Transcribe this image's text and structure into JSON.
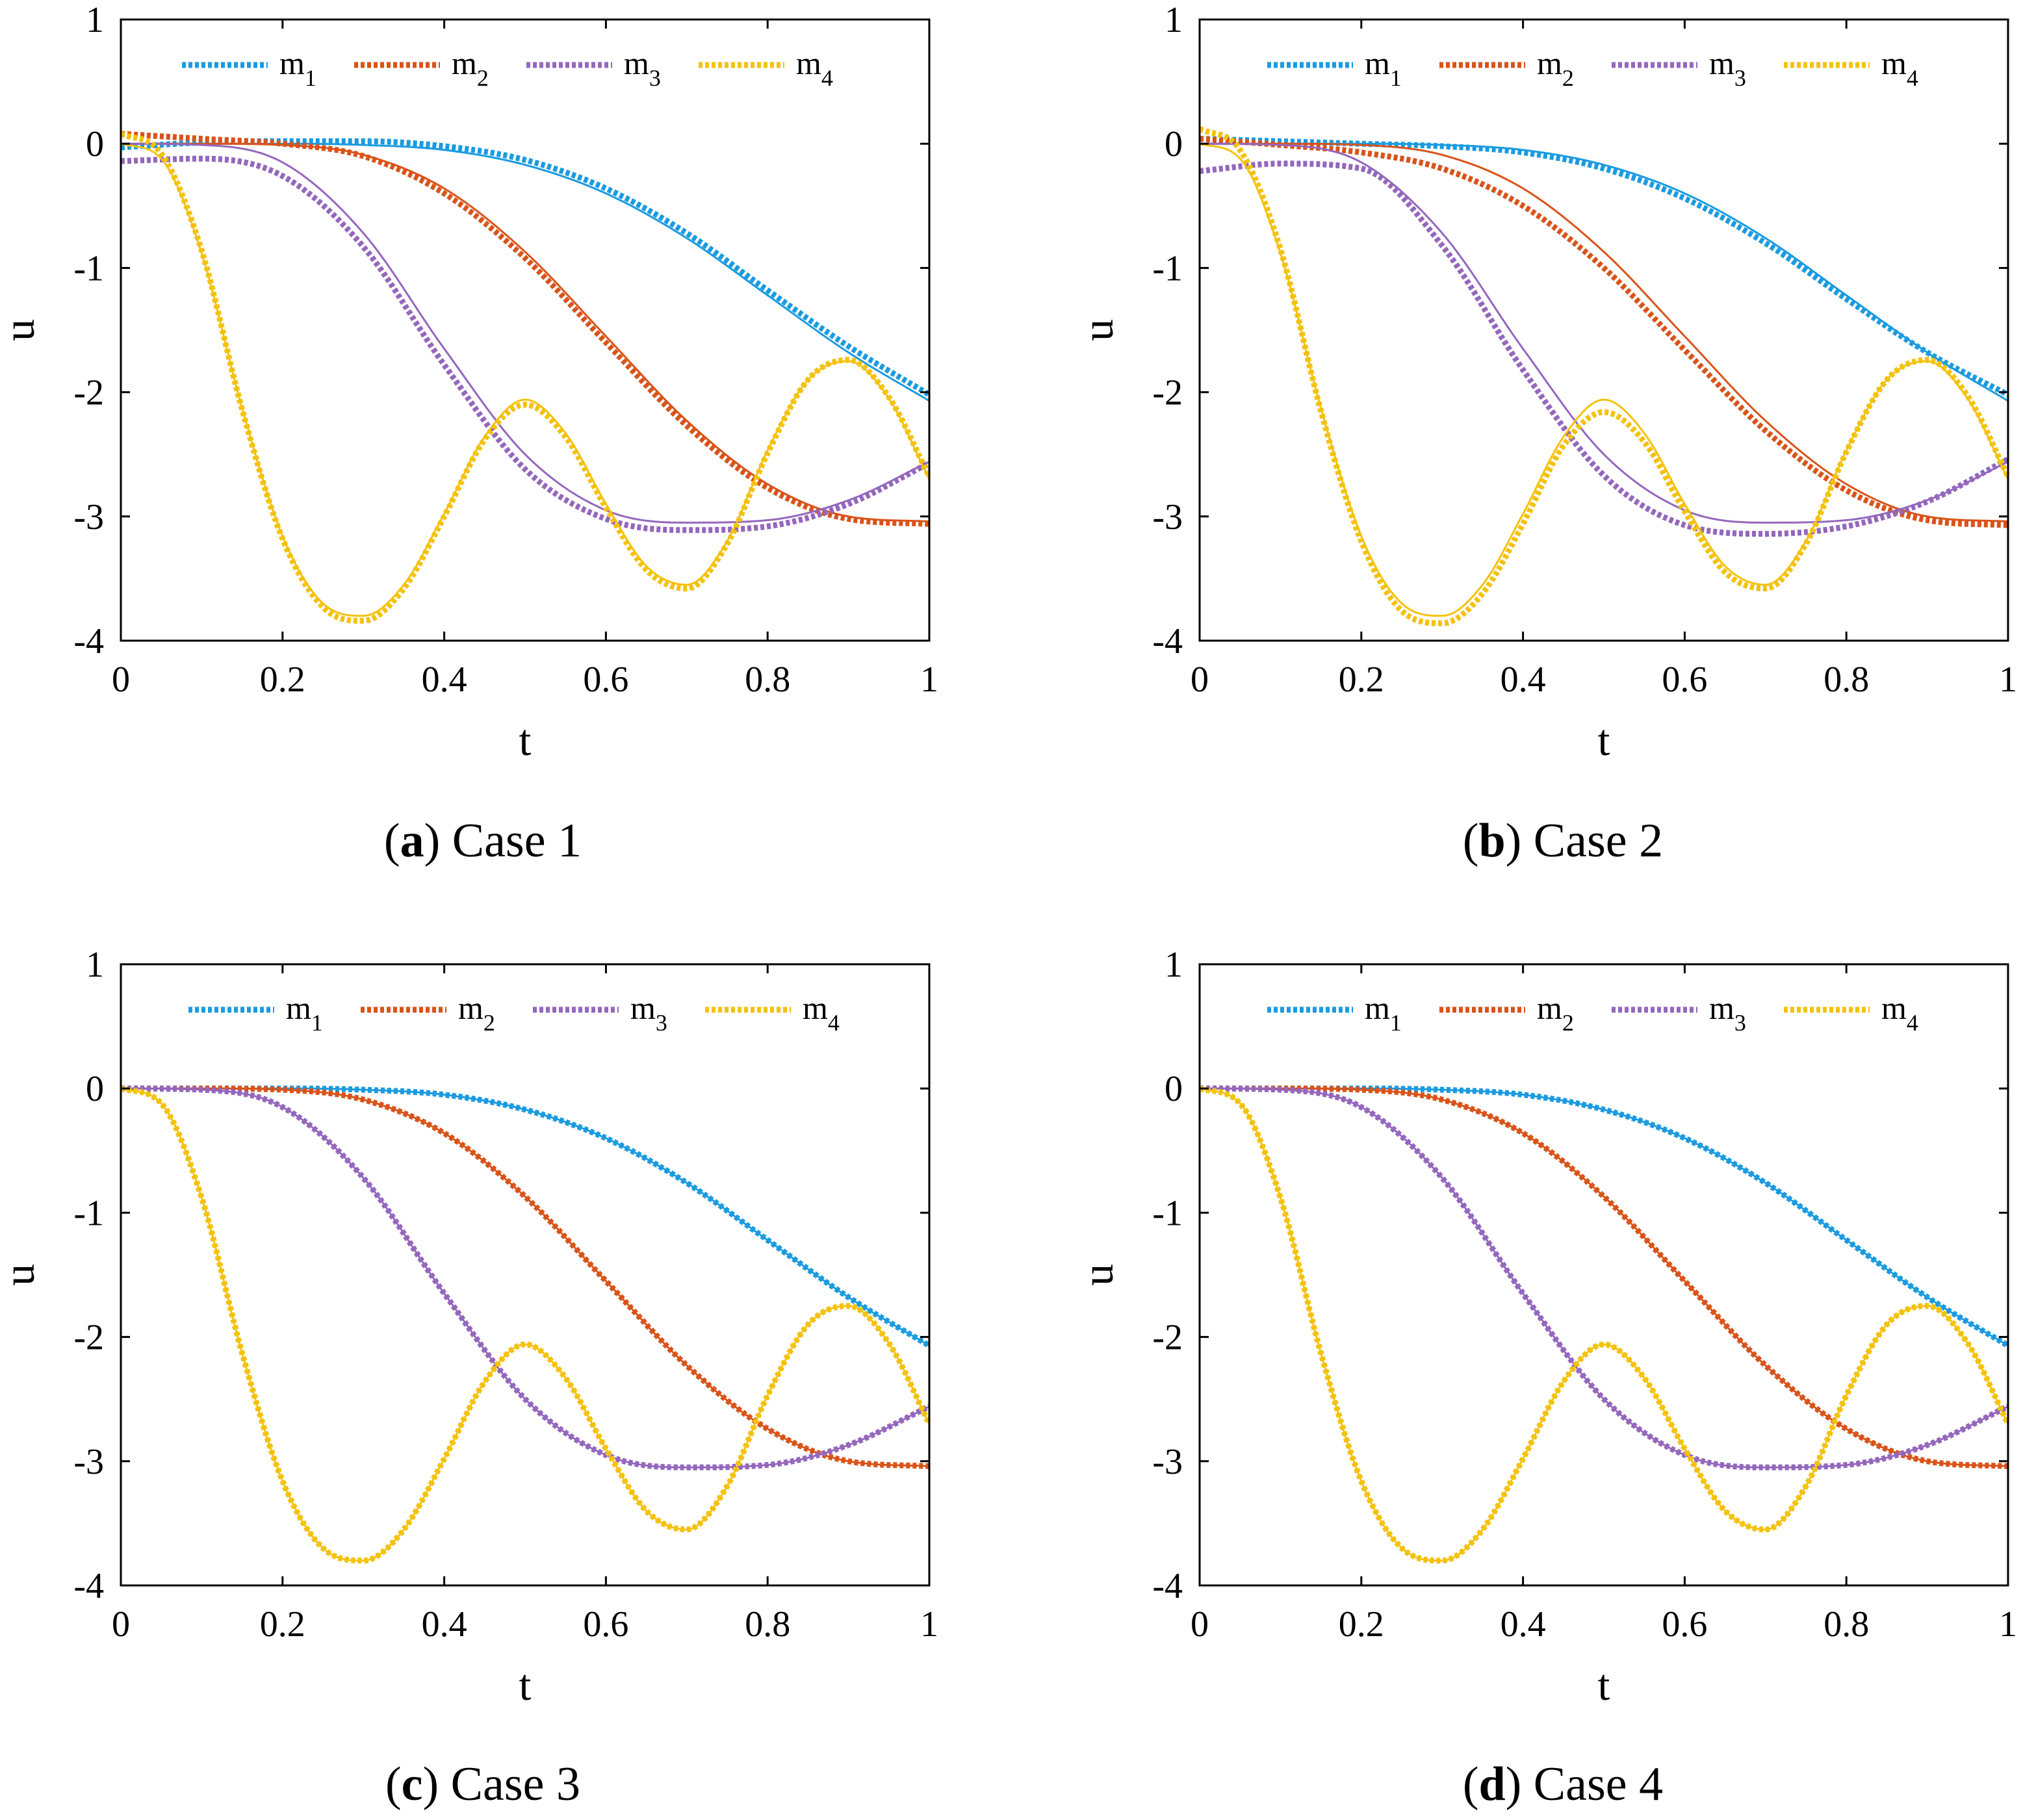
{
  "figure": {
    "panels": [
      {
        "letter": "a",
        "title": "Case 1"
      },
      {
        "letter": "b",
        "title": "Case 2"
      },
      {
        "letter": "c",
        "title": "Case 3"
      },
      {
        "letter": "d",
        "title": "Case 4"
      }
    ]
  },
  "chart_data": [
    {
      "type": "line",
      "title": "(a) Case 1",
      "xlabel": "t",
      "ylabel": "u",
      "xlim": [
        0,
        1
      ],
      "ylim": [
        -4,
        1
      ],
      "xticks": [
        0,
        0.2,
        0.4,
        0.6,
        0.8,
        1
      ],
      "yticks": [
        -4,
        -3,
        -2,
        -1,
        0,
        1
      ],
      "xtick_labels": [
        "0",
        "0.2",
        "0.4",
        "0.6",
        "0.8",
        "1"
      ],
      "ytick_labels": [
        "-4",
        "-3",
        "-2",
        "-1",
        "0",
        "1"
      ],
      "legend_position": "top",
      "series": [
        {
          "name": "m",
          "sub": "1",
          "color": "#1a9be0",
          "x": [
            0,
            0.1,
            0.2,
            0.3,
            0.4,
            0.5,
            0.6,
            0.7,
            0.8,
            0.9,
            1
          ],
          "exact": [
            0,
            0,
            0,
            -0.01,
            -0.05,
            -0.17,
            -0.4,
            -0.76,
            -1.22,
            -1.68,
            -2.07
          ],
          "approx": [
            -0.03,
            0.01,
            0.02,
            0.02,
            -0.02,
            -0.13,
            -0.36,
            -0.72,
            -1.18,
            -1.63,
            -2.02
          ]
        },
        {
          "name": "m",
          "sub": "2",
          "color": "#d95319",
          "x": [
            0,
            0.1,
            0.2,
            0.3,
            0.4,
            0.5,
            0.6,
            0.7,
            0.8,
            0.9,
            1
          ],
          "exact": [
            0,
            0,
            -0.01,
            -0.09,
            -0.36,
            -0.87,
            -1.55,
            -2.23,
            -2.74,
            -3.0,
            -3.04
          ],
          "approx": [
            0.08,
            0.04,
            0.0,
            -0.1,
            -0.4,
            -0.92,
            -1.6,
            -2.27,
            -2.77,
            -3.02,
            -3.06
          ]
        },
        {
          "name": "m",
          "sub": "3",
          "color": "#9467bd",
          "x": [
            0,
            0.1,
            0.2,
            0.3,
            0.4,
            0.5,
            0.6,
            0.7,
            0.8,
            0.9,
            1
          ],
          "exact": [
            0,
            -0.01,
            -0.15,
            -0.72,
            -1.65,
            -2.5,
            -2.95,
            -3.05,
            -3.03,
            -2.87,
            -2.56
          ],
          "approx": [
            -0.14,
            -0.12,
            -0.26,
            -0.83,
            -1.78,
            -2.62,
            -3.02,
            -3.11,
            -3.08,
            -2.9,
            -2.57
          ]
        },
        {
          "name": "m",
          "sub": "4",
          "color": "#f4c20d",
          "x": [
            0,
            0.05,
            0.1,
            0.15,
            0.2,
            0.25,
            0.3,
            0.35,
            0.4,
            0.45,
            0.5,
            0.55,
            0.6,
            0.65,
            0.7,
            0.75,
            0.8,
            0.85,
            0.9,
            0.95,
            1
          ],
          "exact": [
            0,
            -0.12,
            -0.88,
            -2.13,
            -3.16,
            -3.7,
            -3.8,
            -3.55,
            -2.98,
            -2.36,
            -2.06,
            -2.33,
            -2.9,
            -3.4,
            -3.55,
            -3.2,
            -2.47,
            -1.9,
            -1.75,
            -2.05,
            -2.7
          ],
          "approx": [
            0.08,
            -0.08,
            -0.86,
            -2.14,
            -3.18,
            -3.73,
            -3.84,
            -3.58,
            -3.0,
            -2.38,
            -2.1,
            -2.36,
            -2.93,
            -3.43,
            -3.58,
            -3.22,
            -2.49,
            -1.9,
            -1.74,
            -2.04,
            -2.68
          ]
        }
      ]
    },
    {
      "type": "line",
      "title": "(b) Case 2",
      "xlabel": "t",
      "ylabel": "u",
      "xlim": [
        0,
        1
      ],
      "ylim": [
        -4,
        1
      ],
      "xticks": [
        0,
        0.2,
        0.4,
        0.6,
        0.8,
        1
      ],
      "yticks": [
        -4,
        -3,
        -2,
        -1,
        0,
        1
      ],
      "xtick_labels": [
        "0",
        "0.2",
        "0.4",
        "0.6",
        "0.8",
        "1"
      ],
      "ytick_labels": [
        "-4",
        "-3",
        "-2",
        "-1",
        "0",
        "1"
      ],
      "legend_position": "top",
      "series": [
        {
          "name": "m",
          "sub": "1",
          "color": "#1a9be0",
          "x": [
            0,
            0.1,
            0.2,
            0.3,
            0.4,
            0.5,
            0.6,
            0.7,
            0.8,
            0.9,
            1
          ],
          "exact": [
            0,
            0,
            0,
            -0.01,
            -0.05,
            -0.17,
            -0.4,
            -0.76,
            -1.22,
            -1.68,
            -2.07
          ],
          "approx": [
            0.04,
            0.02,
            0.0,
            -0.02,
            -0.07,
            -0.2,
            -0.44,
            -0.8,
            -1.25,
            -1.68,
            -2.02
          ]
        },
        {
          "name": "m",
          "sub": "2",
          "color": "#d95319",
          "x": [
            0,
            0.1,
            0.2,
            0.3,
            0.4,
            0.5,
            0.6,
            0.7,
            0.8,
            0.9,
            1
          ],
          "exact": [
            0,
            0,
            -0.01,
            -0.09,
            -0.36,
            -0.87,
            -1.55,
            -2.23,
            -2.74,
            -3.0,
            -3.04
          ],
          "approx": [
            0.04,
            -0.01,
            -0.07,
            -0.2,
            -0.5,
            -1.0,
            -1.66,
            -2.31,
            -2.79,
            -3.03,
            -3.07
          ]
        },
        {
          "name": "m",
          "sub": "3",
          "color": "#9467bd",
          "x": [
            0,
            0.1,
            0.2,
            0.3,
            0.4,
            0.5,
            0.6,
            0.7,
            0.8,
            0.9,
            1
          ],
          "exact": [
            0,
            -0.01,
            -0.15,
            -0.72,
            -1.65,
            -2.5,
            -2.95,
            -3.05,
            -3.03,
            -2.87,
            -2.56
          ],
          "approx": [
            -0.22,
            -0.16,
            -0.2,
            -0.82,
            -1.82,
            -2.67,
            -3.07,
            -3.14,
            -3.08,
            -2.88,
            -2.54
          ]
        },
        {
          "name": "m",
          "sub": "4",
          "color": "#f4c20d",
          "x": [
            0,
            0.05,
            0.1,
            0.15,
            0.2,
            0.25,
            0.3,
            0.35,
            0.4,
            0.45,
            0.5,
            0.55,
            0.6,
            0.65,
            0.7,
            0.75,
            0.8,
            0.85,
            0.9,
            0.95,
            1
          ],
          "exact": [
            0,
            -0.12,
            -0.88,
            -2.13,
            -3.16,
            -3.7,
            -3.8,
            -3.55,
            -2.98,
            -2.36,
            -2.06,
            -2.33,
            -2.9,
            -3.4,
            -3.55,
            -3.2,
            -2.47,
            -1.9,
            -1.75,
            -2.05,
            -2.7
          ],
          "approx": [
            0.12,
            -0.05,
            -0.85,
            -2.15,
            -3.2,
            -3.76,
            -3.86,
            -3.62,
            -3.06,
            -2.43,
            -2.16,
            -2.4,
            -2.96,
            -3.45,
            -3.58,
            -3.22,
            -2.48,
            -1.9,
            -1.74,
            -2.03,
            -2.68
          ]
        }
      ]
    },
    {
      "type": "line",
      "title": "(c) Case 3",
      "xlabel": "t",
      "ylabel": "u",
      "xlim": [
        0,
        1
      ],
      "ylim": [
        -4,
        1
      ],
      "xticks": [
        0,
        0.2,
        0.4,
        0.6,
        0.8,
        1
      ],
      "yticks": [
        -4,
        -3,
        -2,
        -1,
        0,
        1
      ],
      "xtick_labels": [
        "0",
        "0.2",
        "0.4",
        "0.6",
        "0.8",
        "1"
      ],
      "ytick_labels": [
        "-4",
        "-3",
        "-2",
        "-1",
        "0",
        "1"
      ],
      "legend_position": "top",
      "series": [
        {
          "name": "m",
          "sub": "1",
          "color": "#1a9be0",
          "x": [
            0,
            0.1,
            0.2,
            0.3,
            0.4,
            0.5,
            0.6,
            0.7,
            0.8,
            0.9,
            1
          ],
          "exact": [
            0,
            0,
            0,
            -0.01,
            -0.05,
            -0.17,
            -0.4,
            -0.76,
            -1.22,
            -1.68,
            -2.07
          ],
          "approx": [
            0,
            0,
            0,
            -0.01,
            -0.05,
            -0.17,
            -0.4,
            -0.76,
            -1.22,
            -1.68,
            -2.07
          ]
        },
        {
          "name": "m",
          "sub": "2",
          "color": "#d95319",
          "x": [
            0,
            0.1,
            0.2,
            0.3,
            0.4,
            0.5,
            0.6,
            0.7,
            0.8,
            0.9,
            1
          ],
          "exact": [
            0,
            0,
            -0.01,
            -0.09,
            -0.36,
            -0.87,
            -1.55,
            -2.23,
            -2.74,
            -3.0,
            -3.04
          ],
          "approx": [
            0,
            0,
            -0.01,
            -0.09,
            -0.36,
            -0.87,
            -1.55,
            -2.23,
            -2.74,
            -3.0,
            -3.04
          ]
        },
        {
          "name": "m",
          "sub": "3",
          "color": "#9467bd",
          "x": [
            0,
            0.1,
            0.2,
            0.3,
            0.4,
            0.5,
            0.6,
            0.7,
            0.8,
            0.9,
            1
          ],
          "exact": [
            0,
            -0.01,
            -0.15,
            -0.72,
            -1.65,
            -2.5,
            -2.95,
            -3.05,
            -3.03,
            -2.87,
            -2.56
          ],
          "approx": [
            0,
            -0.01,
            -0.15,
            -0.72,
            -1.65,
            -2.5,
            -2.95,
            -3.05,
            -3.03,
            -2.87,
            -2.56
          ]
        },
        {
          "name": "m",
          "sub": "4",
          "color": "#f4c20d",
          "x": [
            0,
            0.05,
            0.1,
            0.15,
            0.2,
            0.25,
            0.3,
            0.35,
            0.4,
            0.45,
            0.5,
            0.55,
            0.6,
            0.65,
            0.7,
            0.75,
            0.8,
            0.85,
            0.9,
            0.95,
            1
          ],
          "exact": [
            0,
            -0.12,
            -0.88,
            -2.13,
            -3.16,
            -3.7,
            -3.8,
            -3.55,
            -2.98,
            -2.36,
            -2.06,
            -2.33,
            -2.9,
            -3.4,
            -3.55,
            -3.2,
            -2.47,
            -1.9,
            -1.75,
            -2.05,
            -2.7
          ],
          "approx": [
            0,
            -0.12,
            -0.88,
            -2.13,
            -3.16,
            -3.7,
            -3.8,
            -3.55,
            -2.98,
            -2.36,
            -2.06,
            -2.33,
            -2.9,
            -3.4,
            -3.55,
            -3.2,
            -2.47,
            -1.9,
            -1.75,
            -2.05,
            -2.7
          ]
        }
      ]
    },
    {
      "type": "line",
      "title": "(d) Case 4",
      "xlabel": "t",
      "ylabel": "u",
      "xlim": [
        0,
        1
      ],
      "ylim": [
        -4,
        1
      ],
      "xticks": [
        0,
        0.2,
        0.4,
        0.6,
        0.8,
        1
      ],
      "yticks": [
        -4,
        -3,
        -2,
        -1,
        0,
        1
      ],
      "xtick_labels": [
        "0",
        "0.2",
        "0.4",
        "0.6",
        "0.8",
        "1"
      ],
      "ytick_labels": [
        "-4",
        "-3",
        "-2",
        "-1",
        "0",
        "1"
      ],
      "legend_position": "top",
      "series": [
        {
          "name": "m",
          "sub": "1",
          "color": "#1a9be0",
          "x": [
            0,
            0.1,
            0.2,
            0.3,
            0.4,
            0.5,
            0.6,
            0.7,
            0.8,
            0.9,
            1
          ],
          "exact": [
            0,
            0,
            0,
            -0.01,
            -0.05,
            -0.17,
            -0.4,
            -0.76,
            -1.22,
            -1.68,
            -2.07
          ],
          "approx": [
            0,
            0,
            0,
            -0.01,
            -0.05,
            -0.17,
            -0.4,
            -0.76,
            -1.22,
            -1.68,
            -2.07
          ]
        },
        {
          "name": "m",
          "sub": "2",
          "color": "#d95319",
          "x": [
            0,
            0.1,
            0.2,
            0.3,
            0.4,
            0.5,
            0.6,
            0.7,
            0.8,
            0.9,
            1
          ],
          "exact": [
            0,
            0,
            -0.01,
            -0.09,
            -0.36,
            -0.87,
            -1.55,
            -2.23,
            -2.74,
            -3.0,
            -3.04
          ],
          "approx": [
            0,
            0,
            -0.01,
            -0.09,
            -0.36,
            -0.87,
            -1.55,
            -2.23,
            -2.74,
            -3.0,
            -3.04
          ]
        },
        {
          "name": "m",
          "sub": "3",
          "color": "#9467bd",
          "x": [
            0,
            0.1,
            0.2,
            0.3,
            0.4,
            0.5,
            0.6,
            0.7,
            0.8,
            0.9,
            1
          ],
          "exact": [
            0,
            -0.01,
            -0.15,
            -0.72,
            -1.65,
            -2.5,
            -2.95,
            -3.05,
            -3.03,
            -2.87,
            -2.56
          ],
          "approx": [
            0,
            -0.01,
            -0.15,
            -0.72,
            -1.65,
            -2.5,
            -2.95,
            -3.05,
            -3.03,
            -2.87,
            -2.56
          ]
        },
        {
          "name": "m",
          "sub": "4",
          "color": "#f4c20d",
          "x": [
            0,
            0.05,
            0.1,
            0.15,
            0.2,
            0.25,
            0.3,
            0.35,
            0.4,
            0.45,
            0.5,
            0.55,
            0.6,
            0.65,
            0.7,
            0.75,
            0.8,
            0.85,
            0.9,
            0.95,
            1
          ],
          "exact": [
            0,
            -0.12,
            -0.88,
            -2.13,
            -3.16,
            -3.7,
            -3.8,
            -3.55,
            -2.98,
            -2.36,
            -2.06,
            -2.33,
            -2.9,
            -3.4,
            -3.55,
            -3.2,
            -2.47,
            -1.9,
            -1.75,
            -2.05,
            -2.7
          ],
          "approx": [
            0,
            -0.12,
            -0.88,
            -2.13,
            -3.16,
            -3.7,
            -3.8,
            -3.55,
            -2.98,
            -2.36,
            -2.06,
            -2.33,
            -2.9,
            -3.4,
            -3.55,
            -3.2,
            -2.47,
            -1.9,
            -1.75,
            -2.05,
            -2.7
          ]
        }
      ]
    }
  ]
}
